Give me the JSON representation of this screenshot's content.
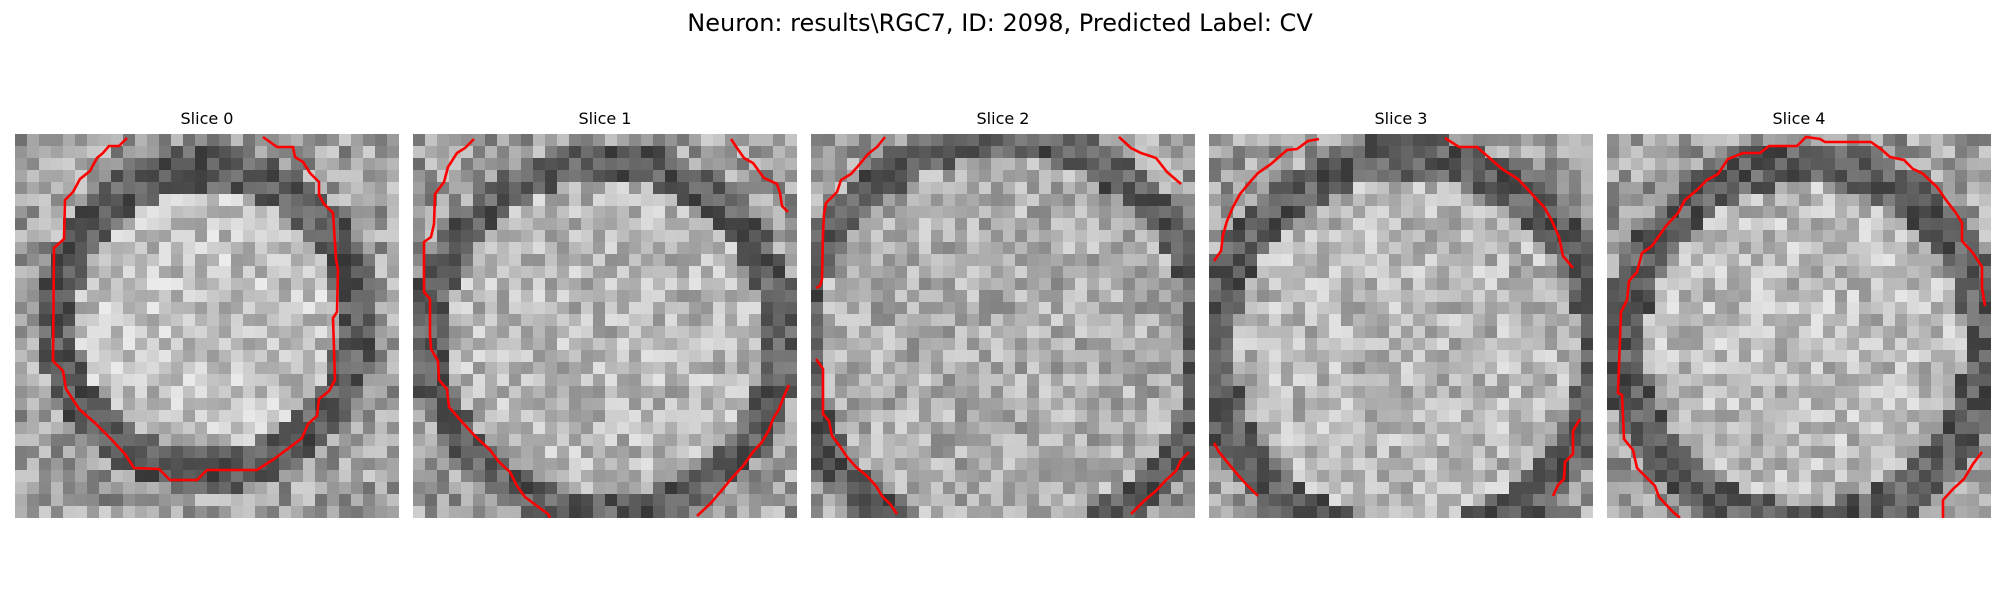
{
  "figure": {
    "title": "Neuron: results\\RGC7, ID: 2098, Predicted Label: CV"
  },
  "colors": {
    "background": "#ffffff",
    "contour": "#ff0000",
    "colormap": "gray"
  },
  "image_grid": {
    "rows": 32,
    "cols": 32
  },
  "panels": [
    {
      "title": "Slice 0"
    },
    {
      "title": "Slice 1"
    },
    {
      "title": "Slice 2"
    },
    {
      "title": "Slice 3"
    },
    {
      "title": "Slice 4"
    }
  ]
}
